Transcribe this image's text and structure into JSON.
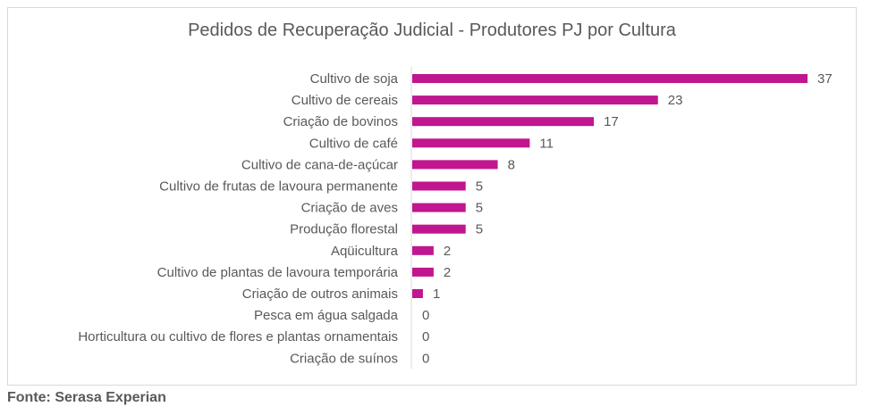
{
  "chart_data": {
    "type": "bar",
    "orientation": "horizontal",
    "title": "Pedidos de Recuperação Judicial - Produtores PJ por Cultura",
    "categories": [
      "Cultivo de soja",
      "Cultivo de cereais",
      "Criação de bovinos",
      "Cultivo de café",
      "Cultivo de cana-de-açúcar",
      "Cultivo de frutas de lavoura permanente",
      "Criação de aves",
      "Produção florestal",
      "Aqüicultura",
      "Cultivo de plantas de lavoura temporária",
      "Criação de outros animais",
      "Pesca em água salgada",
      "Horticultura ou cultivo de flores e plantas ornamentais",
      "Criação de suínos"
    ],
    "values": [
      37,
      23,
      17,
      11,
      8,
      5,
      5,
      5,
      2,
      2,
      1,
      0,
      0,
      0
    ],
    "xlim": [
      0,
      37
    ],
    "grid": false,
    "data_labels": true,
    "bar_color": "#c0168f"
  },
  "source": "Fonte: Serasa Experian"
}
